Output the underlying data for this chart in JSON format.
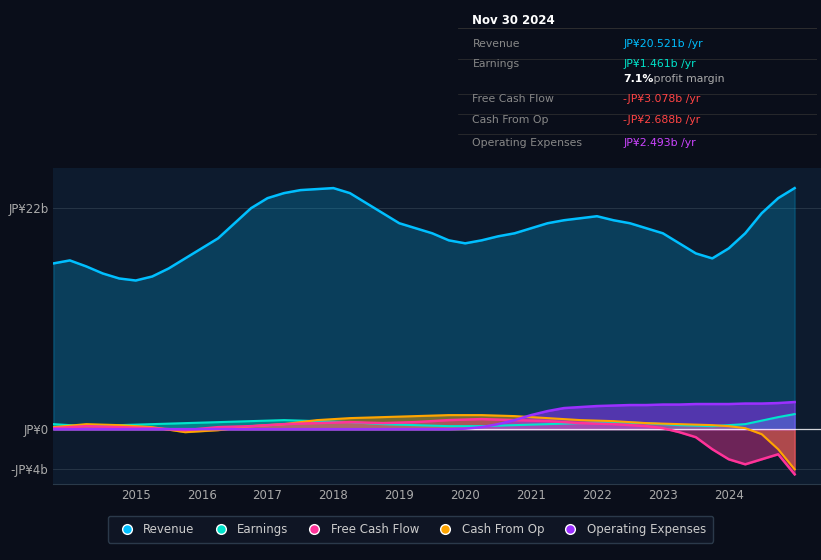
{
  "background_color": "#0a0e1a",
  "plot_bg_color": "#0d1b2e",
  "ylim": [
    -5.5,
    26
  ],
  "xlim": [
    2013.75,
    2025.4
  ],
  "x_ticks": [
    2015,
    2016,
    2017,
    2018,
    2019,
    2020,
    2021,
    2022,
    2023,
    2024
  ],
  "y_ticks_vals": [
    22,
    0,
    -4
  ],
  "y_ticks_labels": [
    "JP¥22b",
    "JP¥0",
    "-JP¥4b"
  ],
  "colors": {
    "revenue": "#00bfff",
    "earnings": "#00e5cc",
    "free_cash_flow": "#ff3399",
    "cash_from_op": "#ffa500",
    "operating_expenses": "#9b30ff"
  },
  "info_box": {
    "title": "Nov 30 2024",
    "rows": [
      {
        "label": "Revenue",
        "value": "JP¥20.521b /yr",
        "value_color": "#00bfff",
        "divider_below": true
      },
      {
        "label": "Earnings",
        "value": "JP¥1.461b /yr",
        "value_color": "#00e5cc",
        "divider_below": false
      },
      {
        "label": "",
        "value": "7.1% profit margin",
        "value_color": "#aaaaaa",
        "divider_below": true
      },
      {
        "label": "Free Cash Flow",
        "value": "-JP¥3.078b /yr",
        "value_color": "#ff4444",
        "divider_below": true
      },
      {
        "label": "Cash From Op",
        "value": "-JP¥2.688b /yr",
        "value_color": "#ff4444",
        "divider_below": true
      },
      {
        "label": "Operating Expenses",
        "value": "JP¥2.493b /yr",
        "value_color": "#cc44ff",
        "divider_below": false
      }
    ]
  },
  "revenue_data": {
    "x": [
      2013.75,
      2014.0,
      2014.25,
      2014.5,
      2014.75,
      2015.0,
      2015.25,
      2015.5,
      2015.75,
      2016.0,
      2016.25,
      2016.5,
      2016.75,
      2017.0,
      2017.25,
      2017.5,
      2017.75,
      2018.0,
      2018.25,
      2018.5,
      2018.75,
      2019.0,
      2019.25,
      2019.5,
      2019.75,
      2020.0,
      2020.25,
      2020.5,
      2020.75,
      2021.0,
      2021.25,
      2021.5,
      2021.75,
      2022.0,
      2022.25,
      2022.5,
      2022.75,
      2023.0,
      2023.25,
      2023.5,
      2023.75,
      2024.0,
      2024.25,
      2024.5,
      2024.75,
      2025.0
    ],
    "y": [
      16.5,
      16.8,
      16.2,
      15.5,
      15.0,
      14.8,
      15.2,
      16.0,
      17.0,
      18.0,
      19.0,
      20.5,
      22.0,
      23.0,
      23.5,
      23.8,
      23.9,
      24.0,
      23.5,
      22.5,
      21.5,
      20.5,
      20.0,
      19.5,
      18.8,
      18.5,
      18.8,
      19.2,
      19.5,
      20.0,
      20.5,
      20.8,
      21.0,
      21.2,
      20.8,
      20.5,
      20.0,
      19.5,
      18.5,
      17.5,
      17.0,
      18.0,
      19.5,
      21.5,
      23.0,
      24.0
    ]
  },
  "earnings_data": {
    "x": [
      2013.75,
      2014.25,
      2014.75,
      2015.25,
      2015.75,
      2016.25,
      2016.75,
      2017.25,
      2017.75,
      2018.25,
      2018.75,
      2019.25,
      2019.75,
      2020.25,
      2020.75,
      2021.25,
      2021.75,
      2022.25,
      2022.75,
      2023.25,
      2023.75,
      2024.25,
      2024.75,
      2025.0
    ],
    "y": [
      0.5,
      0.3,
      0.4,
      0.5,
      0.6,
      0.7,
      0.8,
      0.9,
      0.8,
      0.7,
      0.5,
      0.4,
      0.3,
      0.3,
      0.4,
      0.5,
      0.6,
      0.7,
      0.6,
      0.4,
      0.3,
      0.5,
      1.2,
      1.5
    ]
  },
  "free_cash_flow_data": {
    "x": [
      2013.75,
      2014.25,
      2014.75,
      2015.25,
      2015.75,
      2016.25,
      2016.75,
      2017.25,
      2017.75,
      2018.25,
      2018.75,
      2019.25,
      2019.75,
      2020.25,
      2020.75,
      2021.25,
      2021.75,
      2022.25,
      2022.75,
      2023.0,
      2023.25,
      2023.5,
      2023.75,
      2024.0,
      2024.25,
      2024.5,
      2024.75,
      2025.0
    ],
    "y": [
      0.1,
      0.3,
      0.2,
      0.1,
      -0.1,
      0.2,
      0.3,
      0.5,
      0.6,
      0.7,
      0.6,
      0.7,
      0.9,
      1.0,
      0.9,
      0.8,
      0.6,
      0.5,
      0.3,
      0.1,
      -0.3,
      -0.8,
      -2.0,
      -3.0,
      -3.5,
      -3.0,
      -2.5,
      -4.5
    ]
  },
  "cash_from_op_data": {
    "x": [
      2013.75,
      2014.25,
      2014.75,
      2015.25,
      2015.75,
      2016.25,
      2016.75,
      2017.25,
      2017.75,
      2018.25,
      2018.75,
      2019.25,
      2019.75,
      2020.25,
      2020.75,
      2021.25,
      2021.75,
      2022.25,
      2022.75,
      2023.25,
      2023.75,
      2024.0,
      2024.25,
      2024.5,
      2024.75,
      2025.0
    ],
    "y": [
      0.2,
      0.5,
      0.4,
      0.2,
      -0.3,
      -0.1,
      0.3,
      0.5,
      0.9,
      1.1,
      1.2,
      1.3,
      1.4,
      1.4,
      1.3,
      1.1,
      0.9,
      0.8,
      0.6,
      0.5,
      0.4,
      0.3,
      0.1,
      -0.5,
      -2.0,
      -4.0
    ]
  },
  "operating_expenses_data": {
    "x": [
      2013.75,
      2019.75,
      2020.0,
      2020.25,
      2020.5,
      2020.75,
      2021.0,
      2021.25,
      2021.5,
      2021.75,
      2022.0,
      2022.25,
      2022.5,
      2022.75,
      2023.0,
      2023.25,
      2023.5,
      2023.75,
      2024.0,
      2024.25,
      2024.5,
      2024.75,
      2025.0
    ],
    "y": [
      0.0,
      0.0,
      0.05,
      0.2,
      0.5,
      0.9,
      1.4,
      1.8,
      2.1,
      2.2,
      2.3,
      2.35,
      2.4,
      2.4,
      2.45,
      2.45,
      2.5,
      2.5,
      2.5,
      2.55,
      2.55,
      2.6,
      2.7
    ]
  }
}
